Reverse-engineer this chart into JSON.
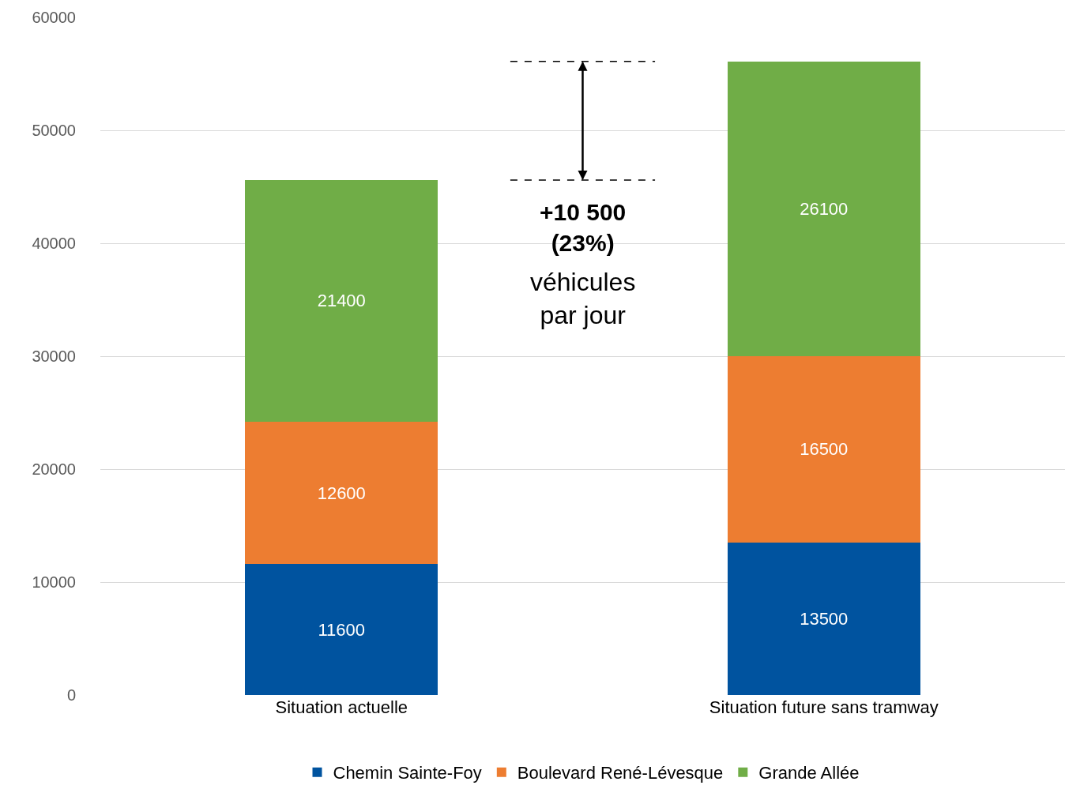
{
  "chart_data": {
    "type": "bar",
    "stacked": true,
    "categories": [
      "Situation actuelle",
      "Situation future sans tramway"
    ],
    "series": [
      {
        "name": "Chemin Sainte-Foy",
        "color": "#00539f",
        "values": [
          11600,
          13500
        ]
      },
      {
        "name": "Boulevard René-Lévesque",
        "color": "#ed7d31",
        "values": [
          12600,
          16500
        ]
      },
      {
        "name": "Grande Allée",
        "color": "#70ad47",
        "values": [
          21400,
          26100
        ]
      }
    ],
    "ylim": [
      0,
      60000
    ],
    "yticks": [
      0,
      10000,
      20000,
      30000,
      40000,
      50000,
      60000
    ],
    "grid": "y",
    "legend": "bottom",
    "data_labels": true,
    "ref_lines": [
      {
        "axis": "y",
        "value": 45600,
        "label": null,
        "color": "#000000",
        "line_style": "dashed"
      },
      {
        "axis": "y",
        "value": 56100,
        "label": null,
        "color": "#000000",
        "line_style": "dashed"
      }
    ],
    "annotations": [
      {
        "text": "+10 500\n(23%)",
        "y": 56100
      },
      "véhicules\npar jour"
    ]
  }
}
